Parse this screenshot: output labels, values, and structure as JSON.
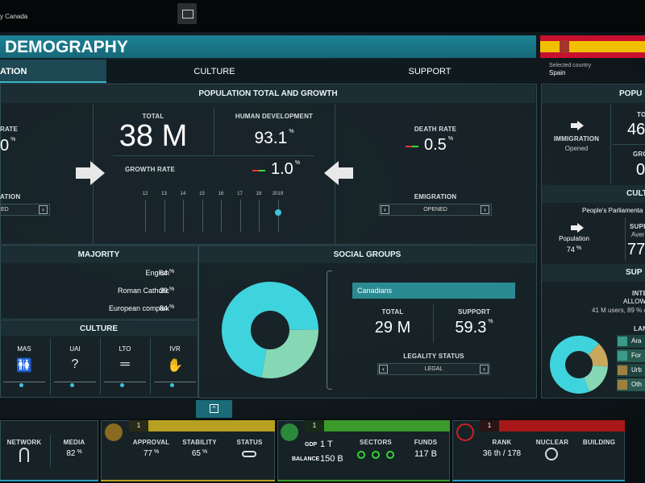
{
  "top_bar": {
    "country_text": "y Canada"
  },
  "header": {
    "title": "DEMOGRAPHY",
    "tabs": [
      "ATION",
      "CULTURE",
      "SUPPORT"
    ],
    "selected_country_label": "Selected country",
    "selected_country": "Spain"
  },
  "population": {
    "title": "POPULATION TOTAL AND GROWTH",
    "birth_rate": {
      "label": "RATE",
      "value": "0",
      "unit": "%"
    },
    "immigration": {
      "label": "ATION",
      "value": "ED"
    },
    "total": {
      "label": "TOTAL",
      "value": "38 M"
    },
    "human_development": {
      "label": "HUMAN DEVELOPMENT",
      "value": "93.1",
      "unit": "%"
    },
    "growth_rate": {
      "label": "GROWTH RATE",
      "value": "1.0",
      "unit": "%"
    },
    "timeline": [
      "12",
      "13",
      "14",
      "15",
      "16",
      "17",
      "18",
      "2019"
    ],
    "death_rate": {
      "label": "DEATH RATE",
      "value": "0.5",
      "unit": "%"
    },
    "emigration": {
      "label": "EMIGRATION",
      "value": "OPENED"
    }
  },
  "majority": {
    "title": "MAJORITY",
    "rows": [
      {
        "label": "English",
        "value": "64",
        "unit": "%"
      },
      {
        "label": "Roman Catholic",
        "value": "39",
        "unit": "%"
      },
      {
        "label": "European complex",
        "value": "84",
        "unit": "%"
      }
    ]
  },
  "culture": {
    "title": "CULTURE",
    "dimensions": [
      "MAS",
      "UAI",
      "LTO",
      "IVR"
    ]
  },
  "social_groups": {
    "title": "SOCIAL GROUPS",
    "group": "Canadians",
    "total": {
      "label": "TOTAL",
      "value": "29 M"
    },
    "support": {
      "label": "SUPPORT",
      "value": "59.3",
      "unit": "%"
    },
    "legality_label": "LEGALITY STATUS",
    "legality": "LEGAL",
    "donut": {
      "values": [
        72,
        28
      ],
      "colors": [
        "#3fd3dd",
        "#86d8b4"
      ]
    }
  },
  "side_panel": {
    "title": "POPU",
    "immigration_label": "IMMIGRATION",
    "immigration_value": "Opened",
    "total_label": "TO",
    "total_value": "46",
    "growth_label": "GRO",
    "growth_value": "0",
    "culture_title": "CULT",
    "parliament": "People's Parliamenta",
    "population_label": "Population",
    "population_value": "74",
    "population_unit": "%",
    "support_label": "SUPP",
    "support_sub": "Aver",
    "support_value": "77",
    "support_title": "SUP",
    "internet_label": "INTE",
    "internet_value": "ALLOW",
    "users": "41 M users, 89 % o",
    "language_title": "LAN",
    "legend": [
      "Ara",
      "For",
      "Urb",
      "Oth"
    ],
    "donut": {
      "values": [
        68,
        14,
        18
      ],
      "colors": [
        "#3fd3dd",
        "#c9a85c",
        "#86d8b4"
      ]
    }
  },
  "bottom_bar": {
    "media": {
      "network_label": "NETWORK",
      "media_label": "MEDIA",
      "media_value": "82",
      "unit": "%"
    },
    "politics": {
      "level": "1",
      "approval_label": "APPROVAL",
      "approval_value": "77",
      "approval_unit": "%",
      "stability_label": "STABILITY",
      "stability_value": "65",
      "stability_unit": "%",
      "status_label": "STATUS"
    },
    "economy": {
      "level": "1",
      "gdp_label": "GDP",
      "gdp_value": "1 T",
      "balance_label": "BALANCE",
      "balance_value": "150 B",
      "sectors_label": "SECTORS",
      "funds_label": "FUNDS",
      "funds_value": "117 B"
    },
    "military": {
      "level": "1",
      "rank_label": "RANK",
      "rank_value": "36 th / 178",
      "nuclear_label": "NUCLEAR",
      "building_label": "BUILDING"
    }
  }
}
